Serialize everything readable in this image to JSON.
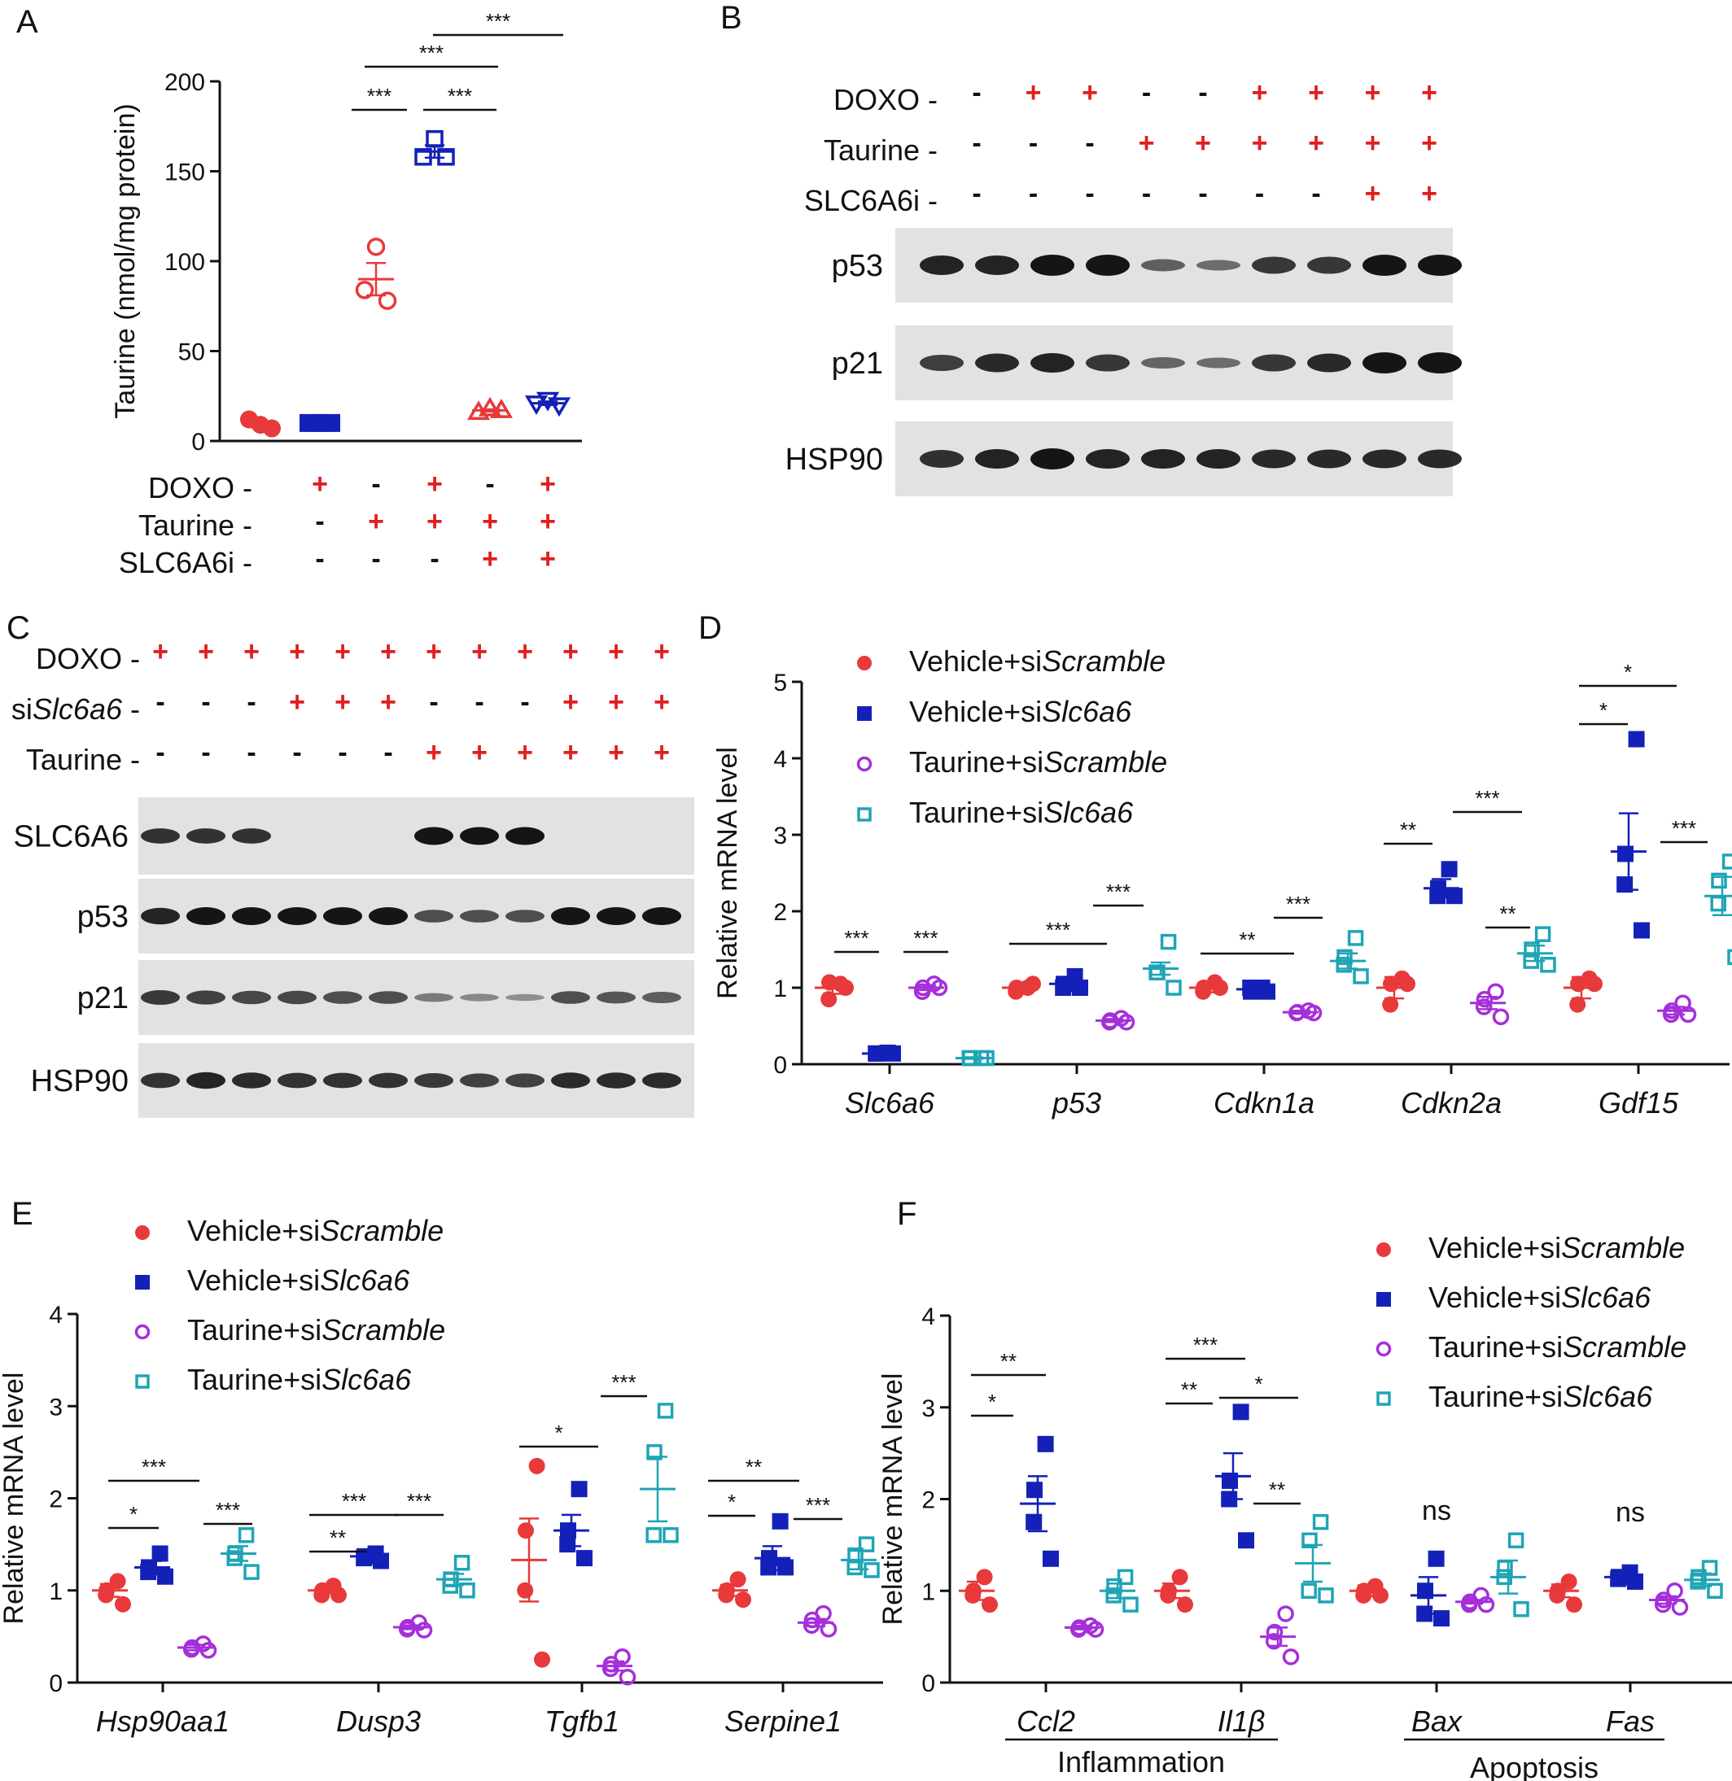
{
  "colors": {
    "vehicle_scramble": "#e8393b",
    "vehicle_slc6a6": "#1321b8",
    "taurine_scramble": "#a52fd9",
    "taurine_slc6a6": "#1ea5b5",
    "plus_sign": "#e01e1e",
    "blot_bg": "#e2e2e2",
    "band": "#151515"
  },
  "legend": [
    {
      "prefix": "Vehicle+si",
      "italic": "Scramble",
      "shape": "filled-circle"
    },
    {
      "prefix": "Vehicle+si",
      "italic": "Slc6a6",
      "shape": "filled-square"
    },
    {
      "prefix": "Taurine+si",
      "italic": "Scramble",
      "shape": "open-circle"
    },
    {
      "prefix": "Taurine+si",
      "italic": "Slc6a6",
      "shape": "open-square"
    }
  ],
  "panel_A": {
    "label": "A",
    "ylabel": "Taurine (nmol/mg protein)",
    "yticks": [
      "0",
      "50",
      "100",
      "150",
      "200"
    ],
    "conditions": [
      {
        "name": "DOXO",
        "values": [
          "-",
          "+",
          "-",
          "+",
          "-",
          "+"
        ]
      },
      {
        "name": "Taurine",
        "values": [
          "-",
          "-",
          "+",
          "+",
          "+",
          "+"
        ]
      },
      {
        "name": "SLC6A6i",
        "values": [
          "-",
          "-",
          "-",
          "-",
          "+",
          "+"
        ]
      }
    ],
    "sig": [
      "***",
      "***",
      "***",
      "***"
    ]
  },
  "panel_B": {
    "label": "B",
    "conditions": [
      {
        "name": "DOXO",
        "values": [
          "-",
          "+",
          "+",
          "-",
          "-",
          "+",
          "+",
          "+",
          "+"
        ]
      },
      {
        "name": "Taurine",
        "values": [
          "-",
          "-",
          "-",
          "+",
          "+",
          "+",
          "+",
          "+",
          "+"
        ]
      },
      {
        "name": "SLC6A6i",
        "values": [
          "-",
          "-",
          "-",
          "-",
          "-",
          "-",
          "-",
          "+",
          "+"
        ]
      }
    ],
    "blots": [
      "p53",
      "p21",
      "HSP90"
    ]
  },
  "panel_C": {
    "label": "C",
    "conditions": [
      {
        "name": "DOXO",
        "italic": "",
        "values": [
          "+",
          "+",
          "+",
          "+",
          "+",
          "+",
          "+",
          "+",
          "+",
          "+",
          "+",
          "+"
        ]
      },
      {
        "name": "si",
        "italic": "Slc6a6",
        "values": [
          "-",
          "-",
          "-",
          "+",
          "+",
          "+",
          "-",
          "-",
          "-",
          "+",
          "+",
          "+"
        ]
      },
      {
        "name": "Taurine",
        "italic": "",
        "values": [
          "-",
          "-",
          "-",
          "-",
          "-",
          "-",
          "+",
          "+",
          "+",
          "+",
          "+",
          "+"
        ]
      }
    ],
    "blots": [
      "SLC6A6",
      "p53",
      "p21",
      "HSP90"
    ]
  },
  "panel_D": {
    "label": "D",
    "ylabel": "Relative mRNA level",
    "yticks": [
      "0",
      "1",
      "2",
      "3",
      "4",
      "5"
    ],
    "categories": [
      "Slc6a6",
      "p53",
      "Cdkn1a",
      "Cdkn2a",
      "Gdf15"
    ],
    "sig": [
      "***",
      "***",
      "***",
      "***",
      "**",
      "***",
      "**",
      "***",
      "**",
      "*",
      "*",
      "***"
    ]
  },
  "panel_E": {
    "label": "E",
    "ylabel": "Relative mRNA level",
    "yticks": [
      "0",
      "1",
      "2",
      "3",
      "4"
    ],
    "categories": [
      "Hsp90aa1",
      "Dusp3",
      "Tgfb1",
      "Serpine1"
    ],
    "sig": [
      "***",
      "*",
      "***",
      "***",
      "**",
      "***",
      "*",
      "***",
      "**",
      "*",
      "***"
    ]
  },
  "panel_F": {
    "label": "F",
    "ylabel": "Relative mRNA level",
    "yticks": [
      "0",
      "1",
      "2",
      "3",
      "4"
    ],
    "categories": [
      "Ccl2",
      "Il1β",
      "Bax",
      "Fas"
    ],
    "groups": [
      "Inflammation",
      "Apoptosis"
    ],
    "sig": [
      "**",
      "*",
      "***",
      "**",
      "*",
      "**",
      "ns",
      "ns"
    ]
  },
  "chart_data": [
    {
      "type": "scatter",
      "panel": "A",
      "ylabel": "Taurine (nmol/mg protein)",
      "ylim": [
        0,
        200
      ],
      "categories": [
        "1",
        "2",
        "3",
        "4",
        "5",
        "6"
      ],
      "series": [
        {
          "values": [
            [
              9,
              12,
              7
            ],
            [
              10,
              10,
              10
            ],
            [
              108,
              84,
              78
            ],
            [
              168,
              158,
              158
            ],
            [
              18,
              16,
              17
            ],
            [
              23,
              21,
              20
            ]
          ],
          "mean": [
            9,
            10,
            90,
            161,
            17,
            21
          ],
          "sem": [
            1.5,
            0.5,
            9,
            3.5,
            0.6,
            1
          ]
        }
      ]
    },
    {
      "type": "scatter",
      "panel": "D",
      "ylabel": "Relative mRNA level",
      "ylim": [
        0,
        5
      ],
      "categories": [
        "Slc6a6",
        "p53",
        "Cdkn1a",
        "Cdkn2a",
        "Gdf15"
      ],
      "series": [
        {
          "name": "Vehicle+siScramble",
          "mean": [
            1.0,
            1.0,
            1.0,
            1.0,
            1.0
          ],
          "sem": [
            0.08,
            0.04,
            0.06,
            0.14,
            0.14
          ],
          "points": [
            [
              1.05,
              1.07,
              0.85,
              1.0
            ],
            [
              1.0,
              1.0,
              0.95,
              1.05
            ],
            [
              1.07,
              1.0,
              0.95,
              1.0
            ],
            [
              1.12,
              1.05,
              0.78,
              1.05
            ],
            [
              1.12,
              1.05,
              0.78,
              1.05
            ]
          ]
        },
        {
          "name": "Vehicle+siSlc6a6",
          "mean": [
            0.14,
            1.05,
            0.98,
            2.3,
            2.78
          ],
          "sem": [
            0.01,
            0.05,
            0.05,
            0.12,
            0.5
          ],
          "points": [
            [
              0.15,
              0.14,
              0.14,
              0.14
            ],
            [
              1.15,
              1.05,
              1.0,
              1.0
            ],
            [
              1.0,
              0.95,
              1.0,
              0.95
            ],
            [
              2.55,
              2.3,
              2.2,
              2.2
            ],
            [
              4.25,
              2.75,
              2.35,
              1.75
            ]
          ]
        },
        {
          "name": "Taurine+siScramble",
          "mean": [
            1.0,
            0.57,
            0.68,
            0.8,
            0.7
          ],
          "sem": [
            0.03,
            0.02,
            0.02,
            0.08,
            0.05
          ],
          "points": [
            [
              1.05,
              1.0,
              0.95,
              1.0
            ],
            [
              0.6,
              0.57,
              0.55,
              0.55
            ],
            [
              0.7,
              0.68,
              0.67,
              0.67
            ],
            [
              0.95,
              0.85,
              0.75,
              0.62
            ],
            [
              0.8,
              0.7,
              0.65,
              0.65
            ]
          ]
        },
        {
          "name": "Taurine+siSlc6a6",
          "mean": [
            0.08,
            1.25,
            1.35,
            1.45,
            2.2
          ],
          "sem": [
            0.01,
            0.08,
            0.1,
            0.1,
            0.25
          ],
          "points": [
            [
              0.08,
              0.08,
              0.08,
              0.08
            ],
            [
              1.6,
              1.2,
              1.2,
              1.0
            ],
            [
              1.65,
              1.4,
              1.3,
              1.15
            ],
            [
              1.7,
              1.5,
              1.35,
              1.3
            ],
            [
              2.65,
              2.4,
              2.1,
              1.4
            ]
          ]
        }
      ]
    },
    {
      "type": "scatter",
      "panel": "E",
      "ylabel": "Relative mRNA level",
      "ylim": [
        0,
        4
      ],
      "categories": [
        "Hsp90aa1",
        "Dusp3",
        "Tgfb1",
        "Serpine1"
      ],
      "series": [
        {
          "name": "Vehicle+siScramble",
          "mean": [
            1.0,
            1.0,
            1.33,
            1.0
          ],
          "sem": [
            0.07,
            0.03,
            0.45,
            0.06
          ],
          "points": [
            [
              1.1,
              1.0,
              0.95,
              0.85
            ],
            [
              1.05,
              1.0,
              0.95,
              0.95
            ],
            [
              2.35,
              1.65,
              1.0,
              0.25
            ],
            [
              1.12,
              1.0,
              0.95,
              0.9
            ]
          ]
        },
        {
          "name": "Vehicle+siSlc6a6",
          "mean": [
            1.25,
            1.37,
            1.65,
            1.35
          ],
          "sem": [
            0.07,
            0.04,
            0.17,
            0.13
          ],
          "points": [
            [
              1.4,
              1.25,
              1.2,
              1.15
            ],
            [
              1.4,
              1.37,
              1.35,
              1.32
            ],
            [
              2.1,
              1.65,
              1.5,
              1.35
            ],
            [
              1.75,
              1.35,
              1.25,
              1.25
            ]
          ]
        },
        {
          "name": "Taurine+siScramble",
          "mean": [
            0.38,
            0.6,
            0.18,
            0.65
          ],
          "sem": [
            0.03,
            0.02,
            0.05,
            0.04
          ],
          "points": [
            [
              0.42,
              0.38,
              0.36,
              0.35
            ],
            [
              0.65,
              0.6,
              0.58,
              0.57
            ],
            [
              0.28,
              0.2,
              0.15,
              0.06
            ],
            [
              0.75,
              0.68,
              0.62,
              0.58
            ]
          ]
        },
        {
          "name": "Taurine+siSlc6a6",
          "mean": [
            1.4,
            1.12,
            2.1,
            1.33
          ],
          "sem": [
            0.08,
            0.06,
            0.35,
            0.1
          ],
          "points": [
            [
              1.6,
              1.4,
              1.35,
              1.2
            ],
            [
              1.3,
              1.12,
              1.05,
              1.0
            ],
            [
              2.95,
              2.5,
              1.6,
              1.6
            ],
            [
              1.5,
              1.38,
              1.25,
              1.22
            ]
          ]
        }
      ]
    },
    {
      "type": "scatter",
      "panel": "F",
      "ylabel": "Relative mRNA level",
      "ylim": [
        0,
        4
      ],
      "categories": [
        "Ccl2",
        "Il1β",
        "Bax",
        "Fas"
      ],
      "series": [
        {
          "name": "Vehicle+siScramble",
          "mean": [
            1.0,
            1.0,
            1.0,
            1.0
          ],
          "sem": [
            0.1,
            0.08,
            0.06,
            0.07
          ],
          "points": [
            [
              1.15,
              1.0,
              0.95,
              0.85
            ],
            [
              1.15,
              1.0,
              0.95,
              0.85
            ],
            [
              1.05,
              1.0,
              0.95,
              0.95
            ],
            [
              1.1,
              1.0,
              0.95,
              0.85
            ]
          ]
        },
        {
          "name": "Vehicle+siSlc6a6",
          "mean": [
            1.95,
            2.25,
            0.95,
            1.15
          ],
          "sem": [
            0.3,
            0.25,
            0.2,
            0.03
          ],
          "points": [
            [
              2.6,
              2.1,
              1.75,
              1.35
            ],
            [
              2.95,
              2.2,
              2.0,
              1.55
            ],
            [
              1.35,
              1.0,
              0.75,
              0.7
            ],
            [
              1.2,
              1.15,
              1.13,
              1.1
            ]
          ]
        },
        {
          "name": "Taurine+siScramble",
          "mean": [
            0.6,
            0.5,
            0.88,
            0.9
          ],
          "sem": [
            0.02,
            0.1,
            0.02,
            0.04
          ],
          "points": [
            [
              0.62,
              0.6,
              0.58,
              0.58
            ],
            [
              0.75,
              0.55,
              0.45,
              0.28
            ],
            [
              0.95,
              0.88,
              0.85,
              0.85
            ],
            [
              1.0,
              0.9,
              0.85,
              0.82
            ]
          ]
        },
        {
          "name": "Taurine+siSlc6a6",
          "mean": [
            1.0,
            1.3,
            1.15,
            1.12
          ],
          "sem": [
            0.08,
            0.2,
            0.18,
            0.07
          ],
          "points": [
            [
              1.15,
              1.05,
              0.95,
              0.85
            ],
            [
              1.75,
              1.55,
              1.0,
              0.95
            ],
            [
              1.55,
              1.25,
              1.15,
              0.8
            ],
            [
              1.25,
              1.15,
              1.1,
              1.0
            ]
          ]
        }
      ]
    }
  ]
}
